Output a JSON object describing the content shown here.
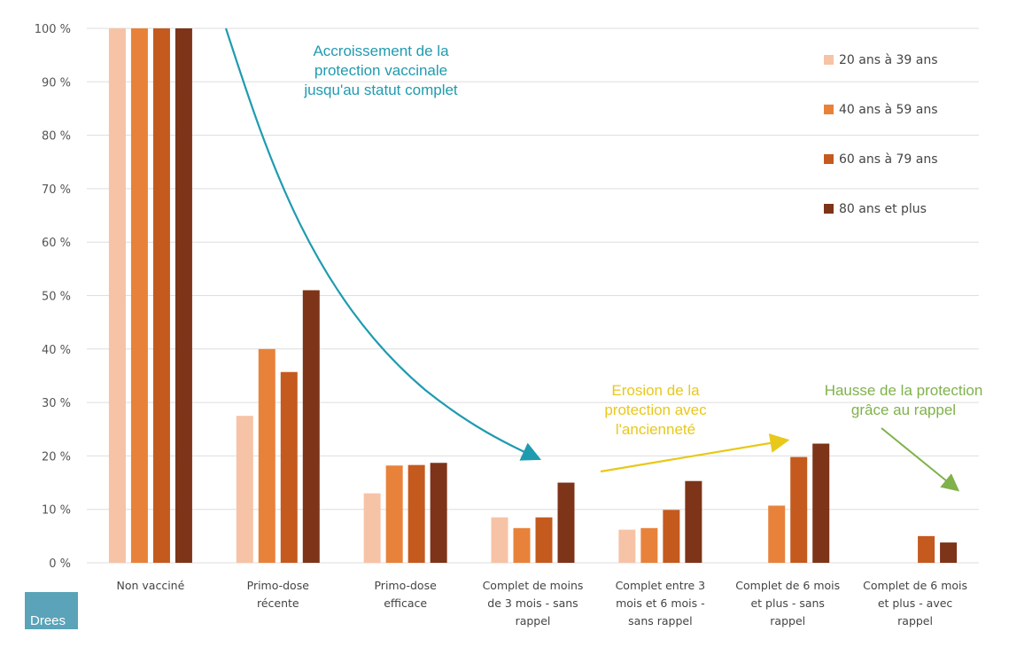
{
  "chart_data": {
    "type": "bar",
    "title": "",
    "xlabel": "",
    "ylabel": "",
    "ylim": [
      0,
      100
    ],
    "yticks": [
      0,
      10,
      20,
      30,
      40,
      50,
      60,
      70,
      80,
      90,
      100
    ],
    "ytick_suffix": " %",
    "grid": true,
    "legend_position": "top-right",
    "categories": [
      [
        "Non vacciné"
      ],
      [
        "Primo-dose",
        "récente"
      ],
      [
        "Primo-dose",
        "efficace"
      ],
      [
        "Complet de moins",
        "de 3 mois - sans",
        "rappel"
      ],
      [
        "Complet entre 3",
        "mois et 6 mois -",
        "sans rappel"
      ],
      [
        "Complet de 6 mois",
        "et plus - sans",
        "rappel"
      ],
      [
        "Complet de 6 mois",
        "et plus - avec",
        "rappel"
      ]
    ],
    "series": [
      {
        "name": "20 ans à 39 ans",
        "color": "#f6c3a6",
        "values": [
          100,
          27.5,
          13,
          8.5,
          6.2,
          null,
          null
        ]
      },
      {
        "name": "40 ans à 59 ans",
        "color": "#e8823a",
        "values": [
          100,
          40,
          18.2,
          6.5,
          6.5,
          10.7,
          null
        ]
      },
      {
        "name": "60 ans à 79 ans",
        "color": "#c45a1e",
        "values": [
          100,
          35.7,
          18.3,
          8.5,
          9.9,
          19.8,
          5
        ]
      },
      {
        "name": "80 ans et plus",
        "color": "#7d3418",
        "values": [
          100,
          51,
          18.7,
          15,
          15.3,
          22.3,
          3.8
        ]
      }
    ],
    "annotations": [
      {
        "id": "accroissement",
        "lines": [
          "Accroissement de la",
          "protection vaccinale",
          "jusqu'au statut complet"
        ],
        "color": "#1f9bb0"
      },
      {
        "id": "erosion",
        "lines": [
          "Erosion de la",
          "protection avec",
          "l'ancienneté"
        ],
        "color": "#e8c81a"
      },
      {
        "id": "hausse",
        "lines": [
          "Hausse de la protection",
          "grâce au rappel"
        ],
        "color": "#7fb24a"
      }
    ]
  },
  "logo": {
    "text": "Drees",
    "color": "#5aa3b8"
  }
}
